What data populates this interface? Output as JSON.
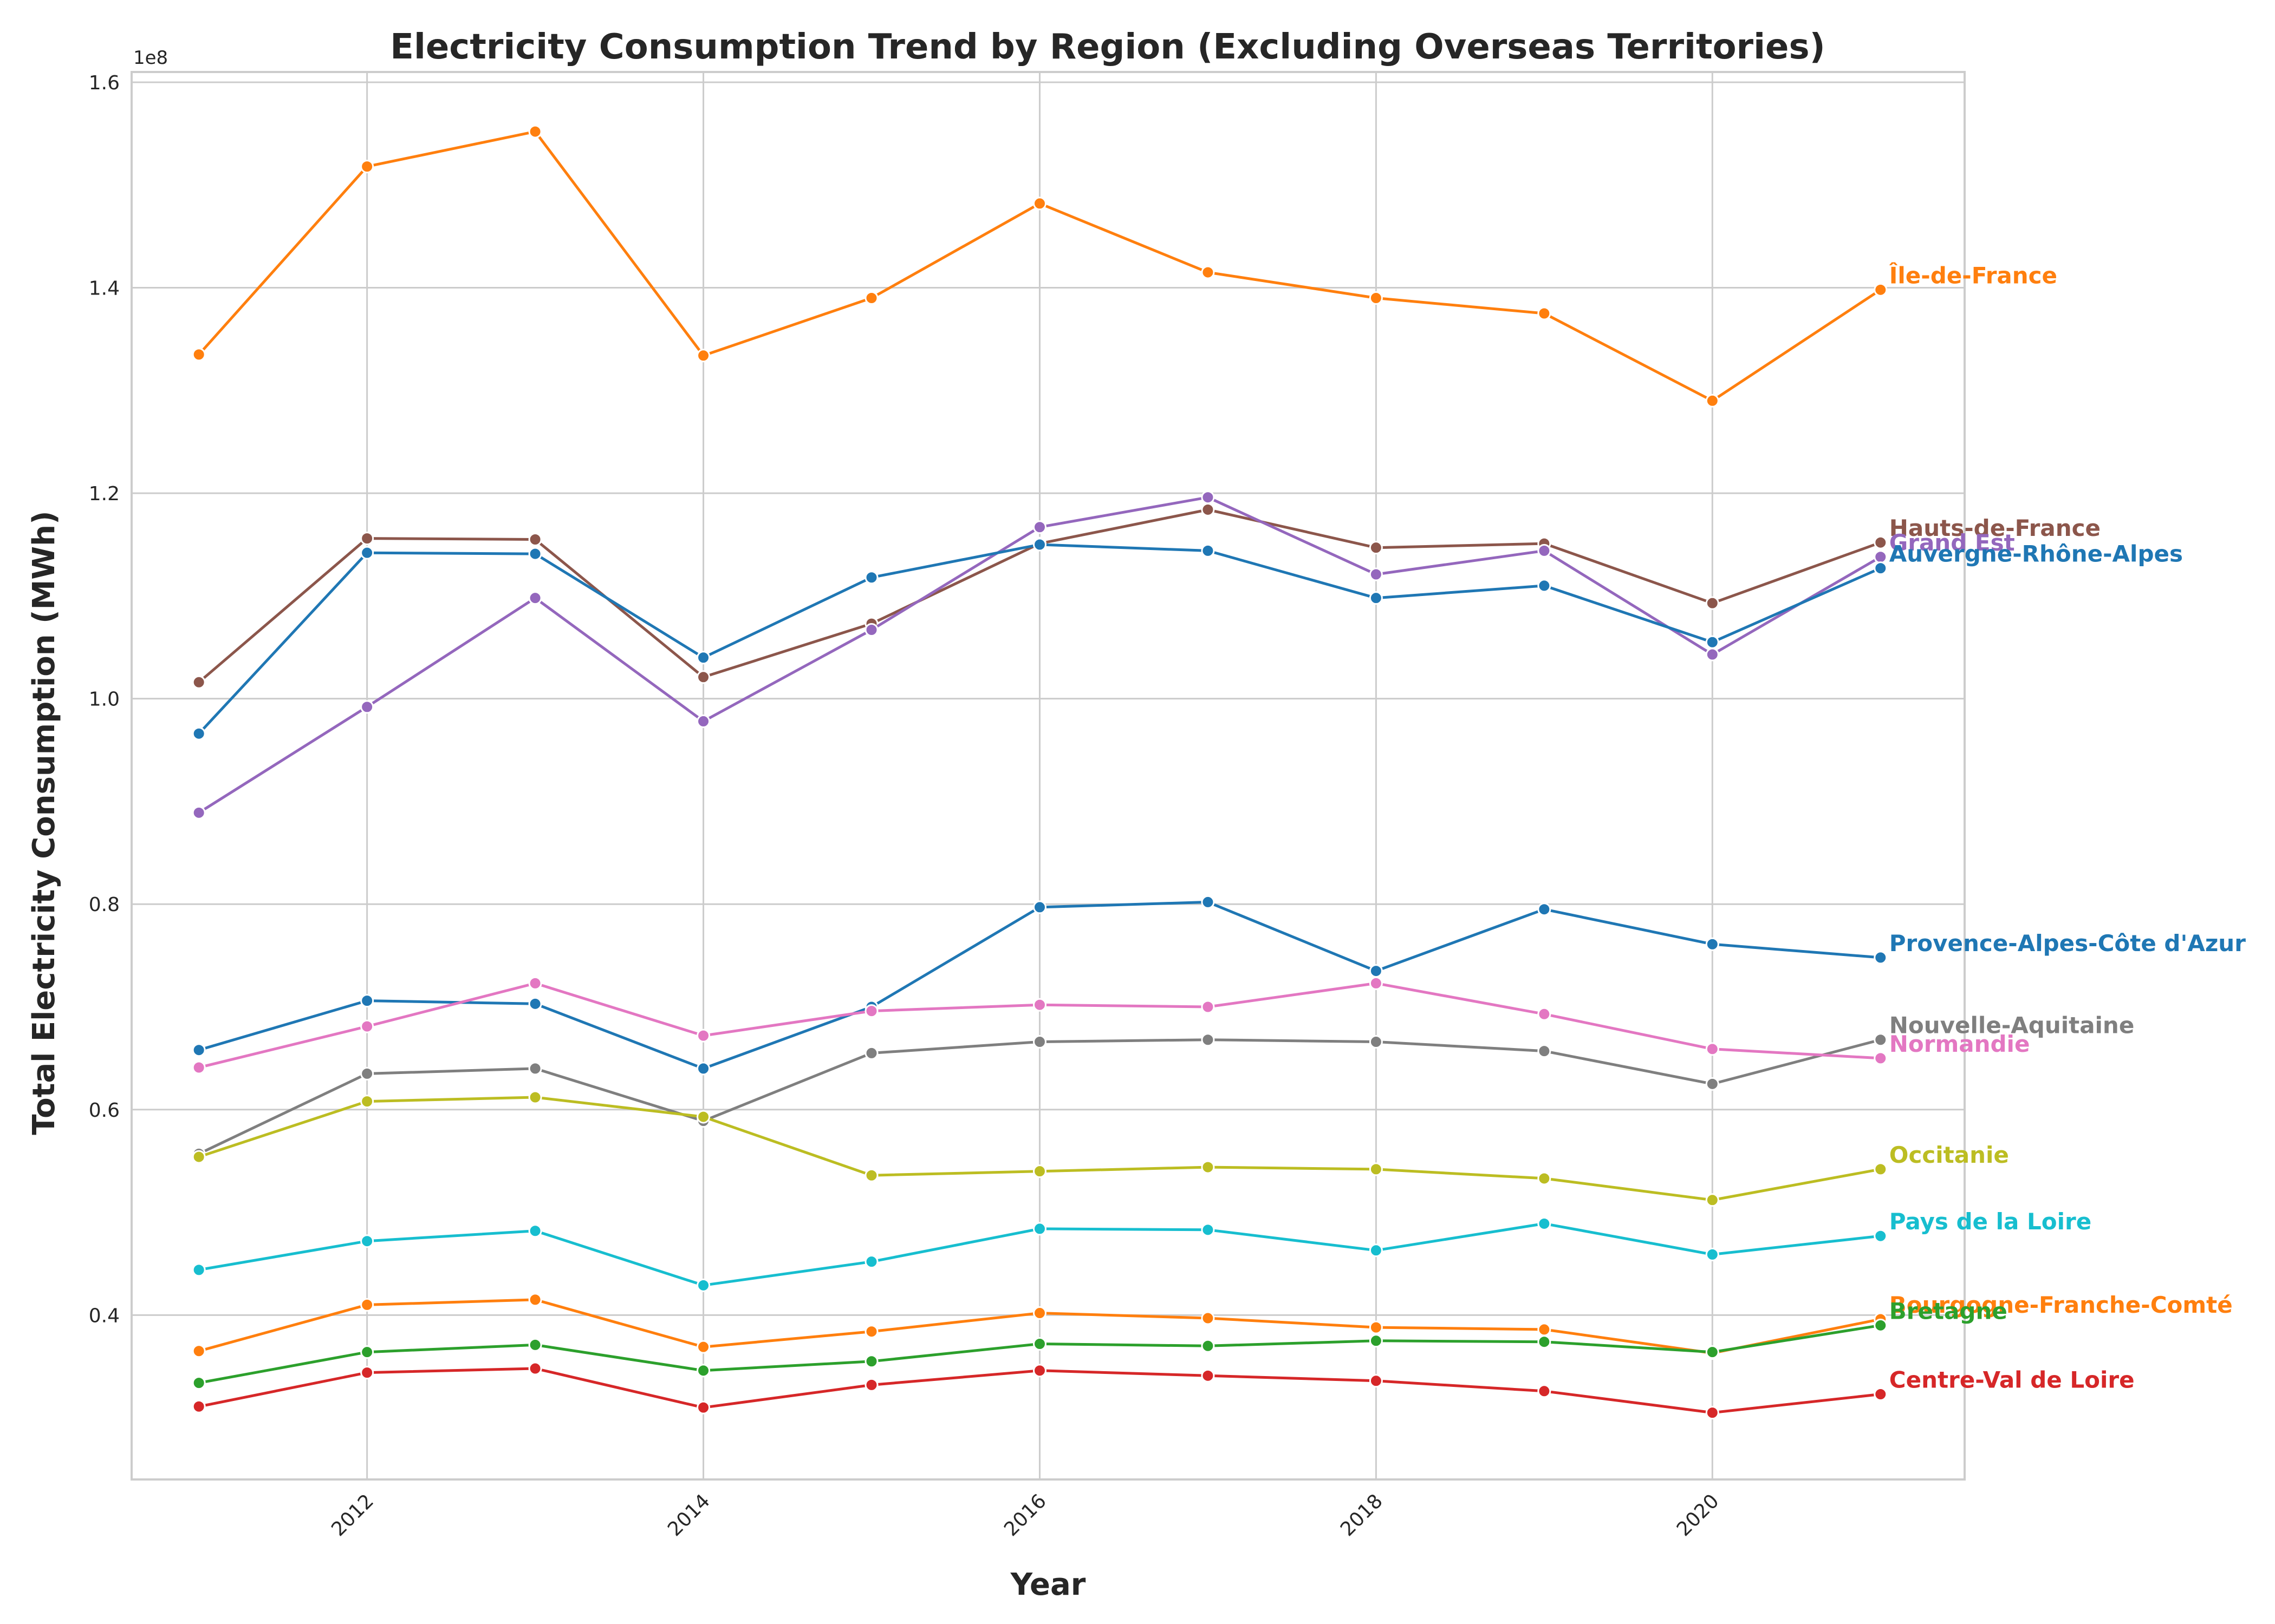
{
  "chart_data": {
    "type": "line",
    "title": "Electricity Consumption Trend by Region (Excluding Overseas Territories)",
    "xlabel": "Year",
    "ylabel": "Total Electricity Consumption (MWh)",
    "y_offset_label": "1e8",
    "xlim": [
      2010.6,
      2021.5
    ],
    "ylim": [
      24000000,
      161000000
    ],
    "x_ticks": [
      2012,
      2014,
      2016,
      2018,
      2020
    ],
    "y_ticks": [
      40000000,
      60000000,
      80000000,
      100000000,
      120000000,
      140000000,
      160000000
    ],
    "y_tick_labels": [
      "0.4",
      "0.6",
      "0.8",
      "1.0",
      "1.2",
      "1.4",
      "1.6"
    ],
    "grid": true,
    "legend": "labels at line ends",
    "x": [
      2011,
      2012,
      2013,
      2014,
      2015,
      2016,
      2017,
      2018,
      2019,
      2020,
      2021
    ],
    "series": [
      {
        "name": "Île-de-France",
        "color": "#ff7f0e",
        "values": [
          133500000,
          151800000,
          155200000,
          133400000,
          139000000,
          148200000,
          141500000,
          139000000,
          137500000,
          129000000,
          139800000
        ]
      },
      {
        "name": "Hauts-de-France",
        "color": "#8c564b",
        "values": [
          101600000,
          115600000,
          115500000,
          102100000,
          107300000,
          115100000,
          118400000,
          114700000,
          115100000,
          109300000,
          115200000
        ]
      },
      {
        "name": "Grand Est",
        "color": "#9467bd",
        "values": [
          88900000,
          99200000,
          109800000,
          97800000,
          106700000,
          116700000,
          119600000,
          112100000,
          114400000,
          104300000,
          113800000
        ]
      },
      {
        "name": "Auvergne-Rhône-Alpes",
        "color": "#1f77b4",
        "values": [
          96600000,
          114200000,
          114100000,
          104000000,
          111800000,
          115000000,
          114400000,
          109800000,
          111000000,
          105500000,
          112700000
        ]
      },
      {
        "name": "Provence-Alpes-Côte d'Azur",
        "color": "#1f77b4",
        "values": [
          65800000,
          70600000,
          70300000,
          64000000,
          70000000,
          79700000,
          80200000,
          73500000,
          79500000,
          76100000,
          74800000
        ]
      },
      {
        "name": "Nouvelle-Aquitaine",
        "color": "#7f7f7f",
        "values": [
          55700000,
          63500000,
          64000000,
          58900000,
          65500000,
          66600000,
          66800000,
          66600000,
          65700000,
          62500000,
          66800000
        ]
      },
      {
        "name": "Normandie",
        "color": "#e377c2",
        "values": [
          64100000,
          68100000,
          72300000,
          67200000,
          69600000,
          70200000,
          70000000,
          72300000,
          69300000,
          65900000,
          65000000
        ]
      },
      {
        "name": "Occitanie",
        "color": "#bcbd22",
        "values": [
          55400000,
          60800000,
          61200000,
          59300000,
          53600000,
          54000000,
          54400000,
          54200000,
          53300000,
          51200000,
          54200000
        ]
      },
      {
        "name": "Pays de la Loire",
        "color": "#17becf",
        "values": [
          44400000,
          47200000,
          48200000,
          42900000,
          45200000,
          48400000,
          48300000,
          46300000,
          48900000,
          45900000,
          47700000
        ]
      },
      {
        "name": "Bourgogne-Franche-Comté",
        "color": "#ff7f0e",
        "values": [
          36500000,
          41000000,
          41500000,
          36900000,
          38400000,
          40200000,
          39700000,
          38800000,
          38600000,
          36300000,
          39600000
        ]
      },
      {
        "name": "Bretagne",
        "color": "#2ca02c",
        "values": [
          33400000,
          36400000,
          37100000,
          34600000,
          35500000,
          37200000,
          37000000,
          37500000,
          37400000,
          36400000,
          39000000
        ]
      },
      {
        "name": "Centre-Val de Loire",
        "color": "#d62728",
        "values": [
          31100000,
          34400000,
          34800000,
          31000000,
          33200000,
          34600000,
          34100000,
          33600000,
          32600000,
          30500000,
          32300000
        ]
      }
    ]
  }
}
